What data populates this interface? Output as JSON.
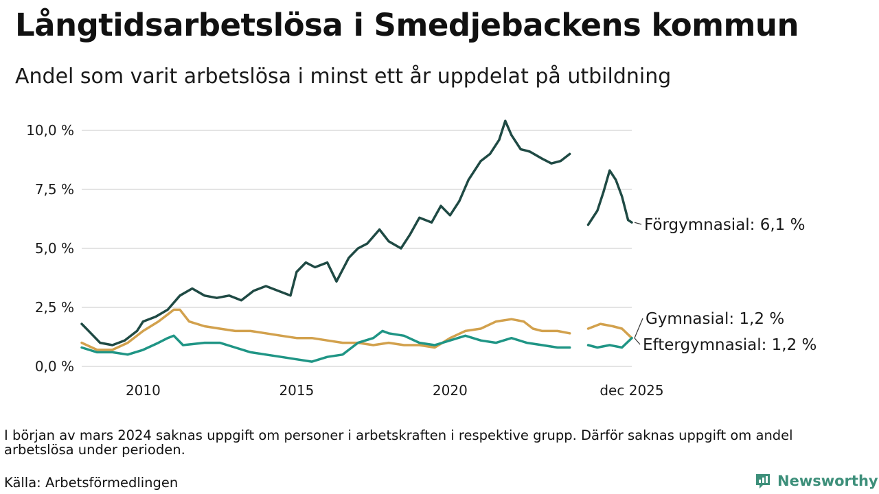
{
  "title": "Långtidsarbetslösa i Smedjebackens kommun",
  "subtitle": "Andel som varit arbetslösa i minst ett år uppdelat på utbildning",
  "note": "I början av mars 2024 saknas uppgift om personer i arbetskraften i respektive grupp. Därför saknas uppgift om andel arbetslösa under perioden.",
  "source": "Källa: Arbetsförmedlingen",
  "brand": "Newsworthy",
  "colors": {
    "forgymnasial": "#1f4a44",
    "gymnasial": "#d2a14d",
    "eftergymnasial": "#1f9585",
    "grid": "#dcdcdc",
    "brand": "#3d8f7a"
  },
  "chart_data": {
    "type": "line",
    "title": "Långtidsarbetslösa i Smedjebackens kommun",
    "xlabel": "",
    "ylabel": "",
    "xlim": [
      2008.0,
      2025.92
    ],
    "ylim": [
      0,
      10
    ],
    "x_ticks": [
      {
        "value": 2010,
        "label": "2010"
      },
      {
        "value": 2015,
        "label": "2015"
      },
      {
        "value": 2020,
        "label": "2020"
      },
      {
        "value": 2025.92,
        "label": "dec 2025"
      }
    ],
    "y_ticks": [
      {
        "value": 0,
        "label": "0,0 %"
      },
      {
        "value": 2.5,
        "label": "2,5 %"
      },
      {
        "value": 5,
        "label": "5,0 %"
      },
      {
        "value": 7.5,
        "label": "7,5 %"
      },
      {
        "value": 10,
        "label": "10,0 %"
      }
    ],
    "gap": [
      2024.0,
      2024.5
    ],
    "series": [
      {
        "name": "Förgymnasial",
        "end_label": "Förgymnasial: 6,1 %",
        "color": "#1f4a44",
        "points": [
          [
            2008.0,
            1.8
          ],
          [
            2008.3,
            1.4
          ],
          [
            2008.6,
            1.0
          ],
          [
            2009.0,
            0.9
          ],
          [
            2009.4,
            1.1
          ],
          [
            2009.8,
            1.5
          ],
          [
            2010.0,
            1.9
          ],
          [
            2010.4,
            2.1
          ],
          [
            2010.8,
            2.4
          ],
          [
            2011.2,
            3.0
          ],
          [
            2011.6,
            3.3
          ],
          [
            2012.0,
            3.0
          ],
          [
            2012.4,
            2.9
          ],
          [
            2012.8,
            3.0
          ],
          [
            2013.2,
            2.8
          ],
          [
            2013.6,
            3.2
          ],
          [
            2014.0,
            3.4
          ],
          [
            2014.4,
            3.2
          ],
          [
            2014.8,
            3.0
          ],
          [
            2015.0,
            4.0
          ],
          [
            2015.3,
            4.4
          ],
          [
            2015.6,
            4.2
          ],
          [
            2016.0,
            4.4
          ],
          [
            2016.3,
            3.6
          ],
          [
            2016.7,
            4.6
          ],
          [
            2017.0,
            5.0
          ],
          [
            2017.3,
            5.2
          ],
          [
            2017.7,
            5.8
          ],
          [
            2018.0,
            5.3
          ],
          [
            2018.4,
            5.0
          ],
          [
            2018.7,
            5.6
          ],
          [
            2019.0,
            6.3
          ],
          [
            2019.4,
            6.1
          ],
          [
            2019.7,
            6.8
          ],
          [
            2020.0,
            6.4
          ],
          [
            2020.3,
            7.0
          ],
          [
            2020.6,
            7.9
          ],
          [
            2021.0,
            8.7
          ],
          [
            2021.3,
            9.0
          ],
          [
            2021.6,
            9.6
          ],
          [
            2021.8,
            10.4
          ],
          [
            2022.0,
            9.8
          ],
          [
            2022.3,
            9.2
          ],
          [
            2022.6,
            9.1
          ],
          [
            2023.0,
            8.8
          ],
          [
            2023.3,
            8.6
          ],
          [
            2023.6,
            8.7
          ],
          [
            2023.9,
            9.0
          ],
          [
            2024.5,
            6.0
          ],
          [
            2024.8,
            6.6
          ],
          [
            2025.0,
            7.4
          ],
          [
            2025.2,
            8.3
          ],
          [
            2025.4,
            7.9
          ],
          [
            2025.6,
            7.2
          ],
          [
            2025.8,
            6.2
          ],
          [
            2025.92,
            6.1
          ]
        ]
      },
      {
        "name": "Gymnasial",
        "end_label": "Gymnasial: 1,2 %",
        "color": "#d2a14d",
        "points": [
          [
            2008.0,
            1.0
          ],
          [
            2008.5,
            0.7
          ],
          [
            2009.0,
            0.7
          ],
          [
            2009.5,
            1.0
          ],
          [
            2010.0,
            1.5
          ],
          [
            2010.5,
            1.9
          ],
          [
            2010.8,
            2.2
          ],
          [
            2011.0,
            2.4
          ],
          [
            2011.2,
            2.4
          ],
          [
            2011.5,
            1.9
          ],
          [
            2012.0,
            1.7
          ],
          [
            2012.5,
            1.6
          ],
          [
            2013.0,
            1.5
          ],
          [
            2013.5,
            1.5
          ],
          [
            2014.0,
            1.4
          ],
          [
            2014.5,
            1.3
          ],
          [
            2015.0,
            1.2
          ],
          [
            2015.5,
            1.2
          ],
          [
            2016.0,
            1.1
          ],
          [
            2016.5,
            1.0
          ],
          [
            2017.0,
            1.0
          ],
          [
            2017.5,
            0.9
          ],
          [
            2018.0,
            1.0
          ],
          [
            2018.5,
            0.9
          ],
          [
            2019.0,
            0.9
          ],
          [
            2019.5,
            0.8
          ],
          [
            2020.0,
            1.2
          ],
          [
            2020.5,
            1.5
          ],
          [
            2021.0,
            1.6
          ],
          [
            2021.5,
            1.9
          ],
          [
            2022.0,
            2.0
          ],
          [
            2022.4,
            1.9
          ],
          [
            2022.7,
            1.6
          ],
          [
            2023.0,
            1.5
          ],
          [
            2023.5,
            1.5
          ],
          [
            2023.9,
            1.4
          ],
          [
            2024.5,
            1.6
          ],
          [
            2024.9,
            1.8
          ],
          [
            2025.3,
            1.7
          ],
          [
            2025.6,
            1.6
          ],
          [
            2025.92,
            1.2
          ]
        ]
      },
      {
        "name": "Eftergymnasial",
        "end_label": "Eftergymnasial: 1,2 %",
        "color": "#1f9585",
        "points": [
          [
            2008.0,
            0.8
          ],
          [
            2008.5,
            0.6
          ],
          [
            2009.0,
            0.6
          ],
          [
            2009.5,
            0.5
          ],
          [
            2010.0,
            0.7
          ],
          [
            2010.5,
            1.0
          ],
          [
            2010.8,
            1.2
          ],
          [
            2011.0,
            1.3
          ],
          [
            2011.3,
            0.9
          ],
          [
            2012.0,
            1.0
          ],
          [
            2012.5,
            1.0
          ],
          [
            2013.0,
            0.8
          ],
          [
            2013.5,
            0.6
          ],
          [
            2014.0,
            0.5
          ],
          [
            2014.5,
            0.4
          ],
          [
            2015.0,
            0.3
          ],
          [
            2015.5,
            0.2
          ],
          [
            2016.0,
            0.4
          ],
          [
            2016.5,
            0.5
          ],
          [
            2017.0,
            1.0
          ],
          [
            2017.5,
            1.2
          ],
          [
            2017.8,
            1.5
          ],
          [
            2018.0,
            1.4
          ],
          [
            2018.5,
            1.3
          ],
          [
            2019.0,
            1.0
          ],
          [
            2019.5,
            0.9
          ],
          [
            2020.0,
            1.1
          ],
          [
            2020.5,
            1.3
          ],
          [
            2021.0,
            1.1
          ],
          [
            2021.5,
            1.0
          ],
          [
            2022.0,
            1.2
          ],
          [
            2022.5,
            1.0
          ],
          [
            2023.0,
            0.9
          ],
          [
            2023.5,
            0.8
          ],
          [
            2023.9,
            0.8
          ],
          [
            2024.5,
            0.9
          ],
          [
            2024.8,
            0.8
          ],
          [
            2025.2,
            0.9
          ],
          [
            2025.6,
            0.8
          ],
          [
            2025.92,
            1.2
          ]
        ]
      }
    ]
  }
}
